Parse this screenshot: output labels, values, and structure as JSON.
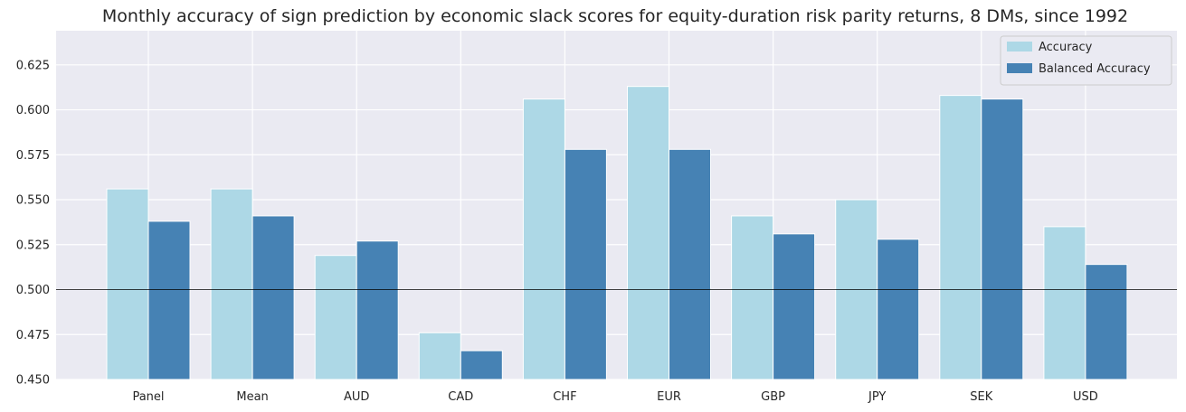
{
  "chart_data": {
    "type": "bar",
    "title": "Monthly accuracy of sign prediction by economic slack scores for equity-duration risk parity returns, 8 DMs, since 1992",
    "xlabel": "",
    "ylabel": "",
    "categories": [
      "Panel",
      "Mean",
      "AUD",
      "CAD",
      "CHF",
      "EUR",
      "GBP",
      "JPY",
      "SEK",
      "USD"
    ],
    "series": [
      {
        "name": "Accuracy",
        "color": "#add8e6",
        "values": [
          0.556,
          0.556,
          0.519,
          0.476,
          0.606,
          0.613,
          0.541,
          0.55,
          0.608,
          0.535
        ]
      },
      {
        "name": "Balanced Accuracy",
        "color": "#4682b4",
        "values": [
          0.538,
          0.541,
          0.527,
          0.466,
          0.578,
          0.578,
          0.531,
          0.528,
          0.606,
          0.514
        ]
      }
    ],
    "ylim": [
      0.45,
      0.644
    ],
    "yticks": [
      0.45,
      0.475,
      0.5,
      0.525,
      0.55,
      0.575,
      0.6,
      0.625
    ],
    "yticklabels": [
      "0.450",
      "0.475",
      "0.500",
      "0.525",
      "0.550",
      "0.575",
      "0.600",
      "0.625"
    ],
    "reference_line": 0.5,
    "grid": true,
    "legend_position": "top-right"
  }
}
